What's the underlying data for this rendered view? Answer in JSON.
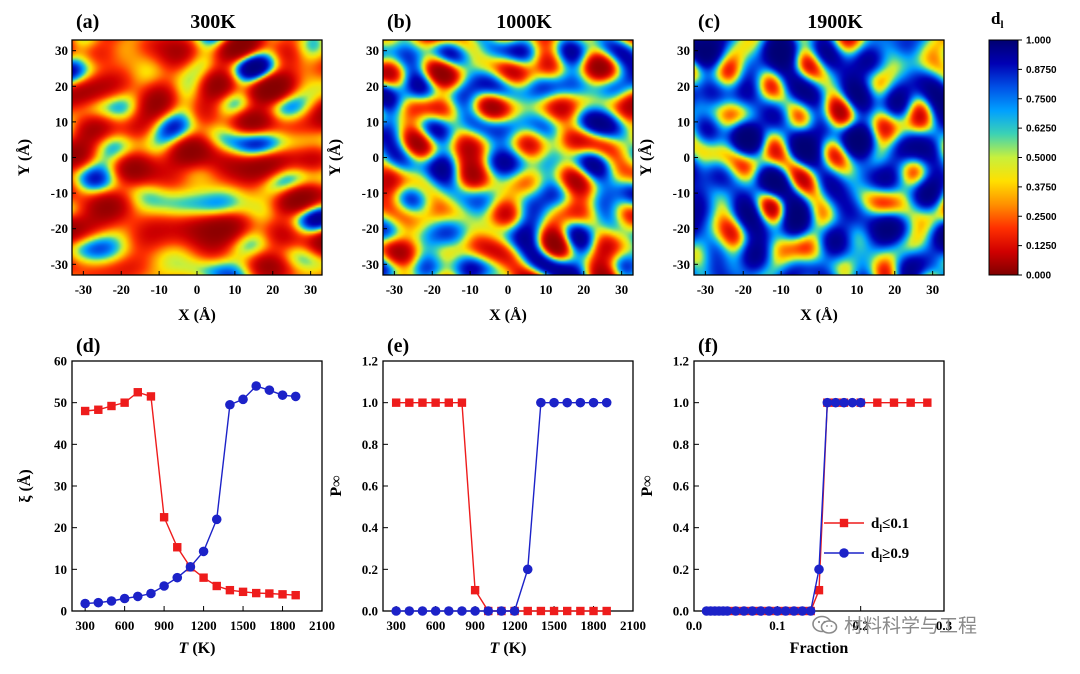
{
  "colors": {
    "red_series": "#ee1c1c",
    "blue_series": "#1c22c8",
    "colormap": [
      "#7f0000",
      "#d00000",
      "#ff3000",
      "#ff9000",
      "#ffe000",
      "#c8f03c",
      "#3cd2b4",
      "#00a0ff",
      "#0050e6",
      "#0000b4",
      "#000070"
    ]
  },
  "watermark": {
    "text": "材料科学与工程",
    "icon": "wechat-icon"
  },
  "maps": [
    {
      "label": "(a)",
      "title": "300K",
      "seed": 11,
      "bias": -0.55,
      "xlabel": "X (Å)",
      "ylabel": "Y (Å)",
      "xticks": [
        "-30",
        "-20",
        "-10",
        "0",
        "10",
        "20",
        "30"
      ],
      "yticks": [
        "30",
        "20",
        "10",
        "0",
        "-10",
        "-20",
        "-30"
      ]
    },
    {
      "label": "(b)",
      "title": "1000K",
      "seed": 29,
      "bias": 0.0,
      "xlabel": "X (Å)",
      "ylabel": "Y (Å)",
      "xticks": [
        "-30",
        "-20",
        "-10",
        "0",
        "10",
        "20",
        "30"
      ],
      "yticks": [
        "30",
        "20",
        "10",
        "0",
        "-10",
        "-20",
        "-30"
      ]
    },
    {
      "label": "(c)",
      "title": "1900K",
      "seed": 47,
      "bias": 0.5,
      "xlabel": "X (Å)",
      "ylabel": "Y (Å)",
      "xticks": [
        "-30",
        "-20",
        "-10",
        "0",
        "10",
        "20",
        "30"
      ],
      "yticks": [
        "30",
        "20",
        "10",
        "0",
        "-10",
        "-20",
        "-30"
      ]
    }
  ],
  "colorbar": {
    "title": "d",
    "title_sub": "l",
    "ticks": [
      "1.000",
      "0.8750",
      "0.7500",
      "0.6250",
      "0.5000",
      "0.3750",
      "0.2500",
      "0.1250",
      "0.000"
    ]
  },
  "chart_data": [
    {
      "type": "heatmap",
      "panel": "(a)",
      "title": "300K",
      "xlabel": "X (Å)",
      "ylabel": "Y (Å)",
      "xlim": [
        -33,
        33
      ],
      "ylim": [
        -33,
        33
      ],
      "colorbar_label": "dl",
      "zlim": [
        0.0,
        1.0
      ]
    },
    {
      "type": "heatmap",
      "panel": "(b)",
      "title": "1000K",
      "xlabel": "X (Å)",
      "ylabel": "Y (Å)",
      "xlim": [
        -33,
        33
      ],
      "ylim": [
        -33,
        33
      ],
      "colorbar_label": "dl",
      "zlim": [
        0.0,
        1.0
      ]
    },
    {
      "type": "heatmap",
      "panel": "(c)",
      "title": "1900K",
      "xlabel": "X (Å)",
      "ylabel": "Y (Å)",
      "xlim": [
        -33,
        33
      ],
      "ylim": [
        -33,
        33
      ],
      "colorbar_label": "dl",
      "zlim": [
        0.0,
        1.0
      ]
    },
    {
      "type": "line",
      "panel": "(d)",
      "xlabel": "T (K)",
      "ylabel": "ξ (Å)",
      "xlim": [
        200,
        2100
      ],
      "ylim": [
        0,
        60
      ],
      "xticks": [
        300,
        600,
        900,
        1200,
        1500,
        1800,
        2100
      ],
      "yticks": [
        0,
        10,
        20,
        30,
        40,
        50,
        60
      ],
      "series": [
        {
          "x": [
            300,
            400,
            500,
            600,
            700,
            800,
            900,
            1000,
            1100,
            1200,
            1300,
            1400,
            1500,
            1600,
            1700,
            1800,
            1900
          ],
          "y": [
            48.0,
            48.3,
            49.2,
            50.0,
            52.5,
            51.5,
            22.5,
            15.3,
            10.5,
            8.0,
            6.0,
            5.0,
            4.6,
            4.3,
            4.2,
            4.0,
            3.8
          ],
          "color": "red",
          "marker": "square"
        },
        {
          "x": [
            300,
            400,
            500,
            600,
            700,
            800,
            900,
            1000,
            1100,
            1200,
            1300,
            1400,
            1500,
            1600,
            1700,
            1800,
            1900
          ],
          "y": [
            1.8,
            2.0,
            2.4,
            3.0,
            3.5,
            4.2,
            6.0,
            8.0,
            10.6,
            14.3,
            22.0,
            49.5,
            50.8,
            54.0,
            53.0,
            51.8,
            51.5
          ],
          "color": "blue",
          "marker": "circle"
        }
      ]
    },
    {
      "type": "line",
      "panel": "(e)",
      "xlabel": "T (K)",
      "ylabel": "P∞",
      "xlim": [
        200,
        2100
      ],
      "ylim": [
        0,
        1.2
      ],
      "xticks": [
        300,
        600,
        900,
        1200,
        1500,
        1800,
        2100
      ],
      "yticks": [
        0.0,
        0.2,
        0.4,
        0.6,
        0.8,
        1.0,
        1.2
      ],
      "series": [
        {
          "x": [
            300,
            400,
            500,
            600,
            700,
            800,
            900,
            1000,
            1100,
            1200,
            1300,
            1400,
            1500,
            1600,
            1700,
            1800,
            1900
          ],
          "y": [
            1,
            1,
            1,
            1,
            1,
            1,
            0.1,
            0,
            0,
            0,
            0,
            0,
            0,
            0,
            0,
            0,
            0
          ],
          "color": "red",
          "marker": "square"
        },
        {
          "x": [
            300,
            400,
            500,
            600,
            700,
            800,
            900,
            1000,
            1100,
            1200,
            1300,
            1400,
            1500,
            1600,
            1700,
            1800,
            1900
          ],
          "y": [
            0,
            0,
            0,
            0,
            0,
            0,
            0,
            0,
            0,
            0,
            0.2,
            1,
            1,
            1,
            1,
            1,
            1
          ],
          "color": "blue",
          "marker": "circle"
        }
      ]
    },
    {
      "type": "line",
      "panel": "(f)",
      "xlabel": "Fraction",
      "ylabel": "P∞",
      "xlim": [
        0.0,
        0.3
      ],
      "ylim": [
        0,
        1.2
      ],
      "xticks": [
        0.0,
        0.1,
        0.2,
        0.3
      ],
      "yticks": [
        0.0,
        0.2,
        0.4,
        0.6,
        0.8,
        1.0,
        1.2
      ],
      "legend_position": "lower-right",
      "series": [
        {
          "name": "dl≤0.1",
          "legend_main": "d",
          "legend_sub": "l",
          "legend_rest": "≤0.1",
          "x": [
            0.02,
            0.03,
            0.04,
            0.05,
            0.06,
            0.07,
            0.08,
            0.09,
            0.1,
            0.11,
            0.12,
            0.13,
            0.14,
            0.15,
            0.16,
            0.17,
            0.18,
            0.2,
            0.22,
            0.24,
            0.26,
            0.28
          ],
          "y": [
            0,
            0,
            0,
            0,
            0,
            0,
            0,
            0,
            0,
            0,
            0,
            0,
            0,
            0.1,
            1,
            1,
            1,
            1,
            1,
            1,
            1,
            1
          ],
          "color": "red",
          "marker": "square"
        },
        {
          "name": "dl≥0.9",
          "legend_main": "d",
          "legend_sub": "l",
          "legend_rest": "≥0.9",
          "x": [
            0.015,
            0.02,
            0.025,
            0.03,
            0.035,
            0.04,
            0.05,
            0.06,
            0.07,
            0.08,
            0.09,
            0.1,
            0.11,
            0.12,
            0.13,
            0.14,
            0.15,
            0.16,
            0.17,
            0.18,
            0.19,
            0.2
          ],
          "y": [
            0,
            0,
            0,
            0,
            0,
            0,
            0,
            0,
            0,
            0,
            0,
            0,
            0,
            0,
            0,
            0,
            0.2,
            1,
            1,
            1,
            1,
            1
          ],
          "color": "blue",
          "marker": "circle"
        }
      ]
    }
  ]
}
